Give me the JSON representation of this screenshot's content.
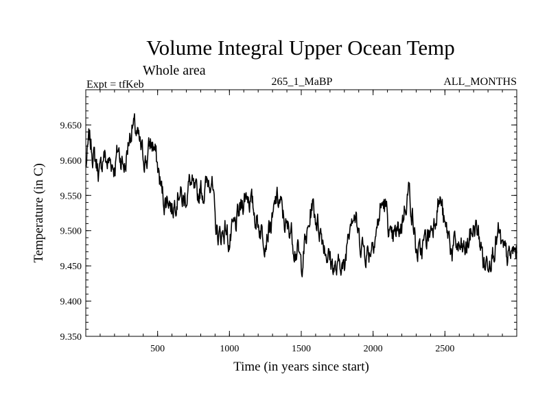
{
  "chart_data": {
    "type": "line",
    "title": "Volume Integral Upper Ocean Temp",
    "subtitle": "Whole area",
    "expt_label": "Expt = tfKeb",
    "run_label": "265_1_MaBP",
    "months_label": "ALL_MONTHS",
    "xlabel": "Time (in years since start)",
    "ylabel": "Temperature (in C)",
    "xlim": [
      0,
      3000
    ],
    "ylim": [
      9.35,
      9.7
    ],
    "x_ticks": [
      500,
      1000,
      1500,
      2000,
      2500
    ],
    "x_tick_labels": [
      "500",
      "1000",
      "1500",
      "2000",
      "2500"
    ],
    "y_ticks": [
      9.35,
      9.4,
      9.45,
      9.5,
      9.55,
      9.6,
      9.65
    ],
    "y_tick_labels": [
      "9.350",
      "9.400",
      "9.450",
      "9.500",
      "9.550",
      "9.600",
      "9.650"
    ],
    "grid": false,
    "line_color": "#000000",
    "series": [
      {
        "x": [
          0,
          25,
          50,
          75,
          100,
          125,
          150,
          175,
          200,
          225,
          250,
          275,
          300,
          325,
          350,
          375,
          400,
          425,
          450,
          475,
          500,
          525,
          550,
          575,
          600,
          625,
          650,
          675,
          700,
          725,
          750,
          775,
          800,
          825,
          850,
          875,
          900,
          925,
          950,
          975,
          1000,
          1025,
          1050,
          1075,
          1100,
          1125,
          1150,
          1175,
          1200,
          1225,
          1250,
          1275,
          1300,
          1325,
          1350,
          1375,
          1400,
          1425,
          1450,
          1475,
          1500,
          1525,
          1550,
          1575,
          1600,
          1625,
          1650,
          1675,
          1700,
          1725,
          1750,
          1775,
          1800,
          1825,
          1850,
          1875,
          1900,
          1925,
          1950,
          1975,
          2000,
          2025,
          2050,
          2075,
          2100,
          2125,
          2150,
          2175,
          2200,
          2225,
          2250,
          2275,
          2300,
          2325,
          2350,
          2375,
          2400,
          2425,
          2450,
          2475,
          2500,
          2525,
          2550,
          2575,
          2600,
          2625,
          2650,
          2675,
          2700,
          2725,
          2750,
          2775,
          2800,
          2825,
          2850,
          2875,
          2900,
          2925,
          2950,
          2975,
          3000
        ],
        "values": [
          9.59,
          9.63,
          9.61,
          9.595,
          9.58,
          9.61,
          9.595,
          9.6,
          9.59,
          9.615,
          9.6,
          9.59,
          9.63,
          9.65,
          9.64,
          9.62,
          9.605,
          9.6,
          9.625,
          9.62,
          9.59,
          9.56,
          9.54,
          9.55,
          9.53,
          9.545,
          9.56,
          9.54,
          9.55,
          9.57,
          9.555,
          9.545,
          9.56,
          9.555,
          9.57,
          9.58,
          9.51,
          9.49,
          9.495,
          9.505,
          9.48,
          9.5,
          9.51,
          9.53,
          9.545,
          9.555,
          9.54,
          9.525,
          9.51,
          9.5,
          9.49,
          9.505,
          9.51,
          9.545,
          9.54,
          9.52,
          9.5,
          9.505,
          9.48,
          9.47,
          9.45,
          9.48,
          9.5,
          9.54,
          9.52,
          9.505,
          9.49,
          9.47,
          9.46,
          9.45,
          9.44,
          9.46,
          9.44,
          9.5,
          9.53,
          9.52,
          9.49,
          9.48,
          9.47,
          9.47,
          9.49,
          9.5,
          9.53,
          9.54,
          9.52,
          9.48,
          9.49,
          9.5,
          9.51,
          9.54,
          9.56,
          9.52,
          9.47,
          9.465,
          9.48,
          9.49,
          9.5,
          9.515,
          9.54,
          9.54,
          9.5,
          9.495,
          9.47,
          9.48,
          9.475,
          9.47,
          9.475,
          9.49,
          9.505,
          9.5,
          9.48,
          9.45,
          9.46,
          9.47,
          9.48,
          9.495,
          9.47,
          9.465,
          9.46,
          9.47,
          9.47
        ]
      }
    ]
  }
}
